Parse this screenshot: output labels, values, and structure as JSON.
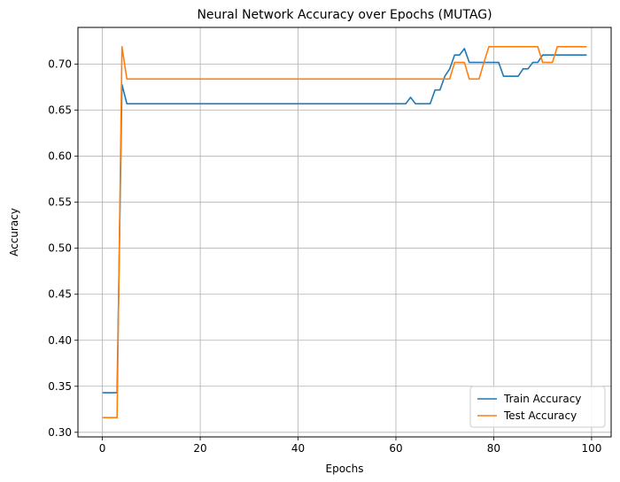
{
  "chart_data": {
    "type": "line",
    "title": "Neural Network Accuracy over Epochs (MUTAG)",
    "xlabel": "Epochs",
    "ylabel": "Accuracy",
    "xlim": [
      -5,
      104
    ],
    "ylim": [
      0.295,
      0.74
    ],
    "xticks": [
      0,
      20,
      40,
      60,
      80,
      100
    ],
    "yticks": [
      0.3,
      0.35,
      0.4,
      0.45,
      0.5,
      0.55,
      0.6,
      0.65,
      0.7
    ],
    "xtick_labels": [
      "0",
      "20",
      "40",
      "60",
      "80",
      "100"
    ],
    "ytick_labels": [
      "0.30",
      "0.35",
      "0.40",
      "0.45",
      "0.50",
      "0.55",
      "0.60",
      "0.65",
      "0.70"
    ],
    "grid": true,
    "legend_position": "bottom-right",
    "series": [
      {
        "name": "Train Accuracy",
        "color": "#1f77b4",
        "x": [
          0,
          1,
          2,
          3,
          4,
          5,
          6,
          7,
          8,
          9,
          10,
          11,
          12,
          13,
          14,
          15,
          16,
          17,
          18,
          19,
          20,
          21,
          22,
          23,
          24,
          25,
          26,
          27,
          28,
          29,
          30,
          31,
          32,
          33,
          34,
          35,
          36,
          37,
          38,
          39,
          40,
          41,
          42,
          43,
          44,
          45,
          46,
          47,
          48,
          49,
          50,
          51,
          52,
          53,
          54,
          55,
          56,
          57,
          58,
          59,
          60,
          61,
          62,
          63,
          64,
          65,
          66,
          67,
          68,
          69,
          70,
          71,
          72,
          73,
          74,
          75,
          76,
          77,
          78,
          79,
          80,
          81,
          82,
          83,
          84,
          85,
          86,
          87,
          88,
          89,
          90,
          91,
          92,
          93,
          94,
          95,
          96,
          97,
          98,
          99
        ],
        "y": [
          0.343,
          0.343,
          0.343,
          0.343,
          0.678,
          0.657,
          0.657,
          0.657,
          0.657,
          0.657,
          0.657,
          0.657,
          0.657,
          0.657,
          0.657,
          0.657,
          0.657,
          0.657,
          0.657,
          0.657,
          0.657,
          0.657,
          0.657,
          0.657,
          0.657,
          0.657,
          0.657,
          0.657,
          0.657,
          0.657,
          0.657,
          0.657,
          0.657,
          0.657,
          0.657,
          0.657,
          0.657,
          0.657,
          0.657,
          0.657,
          0.657,
          0.657,
          0.657,
          0.657,
          0.657,
          0.657,
          0.657,
          0.657,
          0.657,
          0.657,
          0.657,
          0.657,
          0.657,
          0.657,
          0.657,
          0.657,
          0.657,
          0.657,
          0.657,
          0.657,
          0.657,
          0.657,
          0.657,
          0.664,
          0.657,
          0.657,
          0.657,
          0.657,
          0.672,
          0.672,
          0.687,
          0.695,
          0.71,
          0.71,
          0.717,
          0.702,
          0.702,
          0.702,
          0.702,
          0.702,
          0.702,
          0.702,
          0.687,
          0.687,
          0.687,
          0.687,
          0.695,
          0.695,
          0.702,
          0.702,
          0.71,
          0.71,
          0.71,
          0.71,
          0.71,
          0.71,
          0.71,
          0.71,
          0.71,
          0.71
        ]
      },
      {
        "name": "Test Accuracy",
        "color": "#ff7f0e",
        "x": [
          0,
          1,
          2,
          3,
          4,
          5,
          6,
          7,
          8,
          9,
          10,
          11,
          12,
          13,
          14,
          15,
          16,
          17,
          18,
          19,
          20,
          21,
          22,
          23,
          24,
          25,
          26,
          27,
          28,
          29,
          30,
          31,
          32,
          33,
          34,
          35,
          36,
          37,
          38,
          39,
          40,
          41,
          42,
          43,
          44,
          45,
          46,
          47,
          48,
          49,
          50,
          51,
          52,
          53,
          54,
          55,
          56,
          57,
          58,
          59,
          60,
          61,
          62,
          63,
          64,
          65,
          66,
          67,
          68,
          69,
          70,
          71,
          72,
          73,
          74,
          75,
          76,
          77,
          78,
          79,
          80,
          81,
          82,
          83,
          84,
          85,
          86,
          87,
          88,
          89,
          90,
          91,
          92,
          93,
          94,
          95,
          96,
          97,
          98,
          99
        ],
        "y": [
          0.316,
          0.316,
          0.316,
          0.316,
          0.719,
          0.684,
          0.684,
          0.684,
          0.684,
          0.684,
          0.684,
          0.684,
          0.684,
          0.684,
          0.684,
          0.684,
          0.684,
          0.684,
          0.684,
          0.684,
          0.684,
          0.684,
          0.684,
          0.684,
          0.684,
          0.684,
          0.684,
          0.684,
          0.684,
          0.684,
          0.684,
          0.684,
          0.684,
          0.684,
          0.684,
          0.684,
          0.684,
          0.684,
          0.684,
          0.684,
          0.684,
          0.684,
          0.684,
          0.684,
          0.684,
          0.684,
          0.684,
          0.684,
          0.684,
          0.684,
          0.684,
          0.684,
          0.684,
          0.684,
          0.684,
          0.684,
          0.684,
          0.684,
          0.684,
          0.684,
          0.684,
          0.684,
          0.684,
          0.684,
          0.684,
          0.684,
          0.684,
          0.684,
          0.684,
          0.684,
          0.684,
          0.684,
          0.702,
          0.702,
          0.702,
          0.684,
          0.684,
          0.684,
          0.702,
          0.719,
          0.719,
          0.719,
          0.719,
          0.719,
          0.719,
          0.719,
          0.719,
          0.719,
          0.719,
          0.719,
          0.702,
          0.702,
          0.702,
          0.719,
          0.719,
          0.719,
          0.719,
          0.719,
          0.719,
          0.719
        ]
      }
    ]
  }
}
